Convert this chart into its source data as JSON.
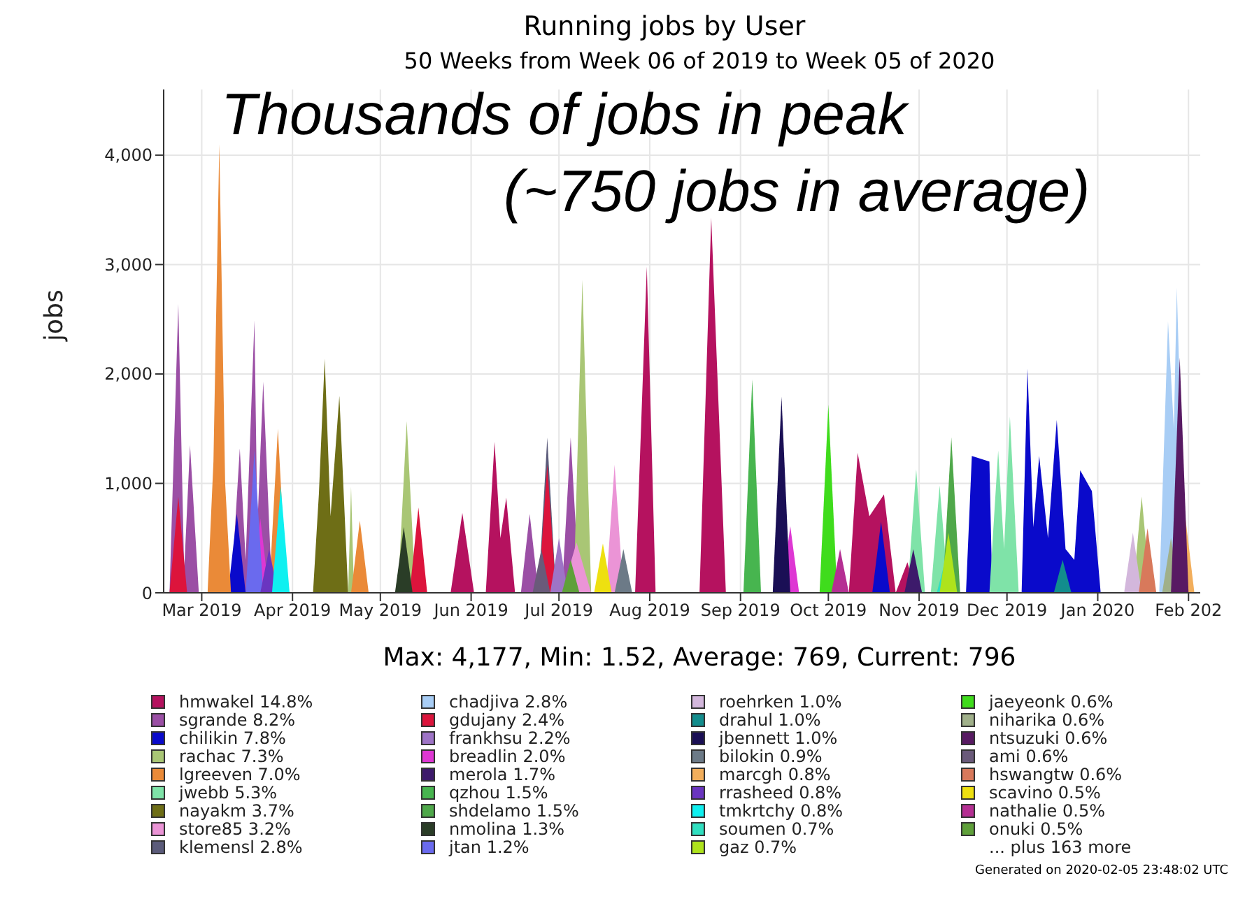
{
  "chart_data": {
    "type": "area",
    "title": "Running jobs by User",
    "subtitle": "50 Weeks from Week 06 of 2019 to Week 05 of 2020",
    "ylabel": "jobs",
    "annotations": [
      "Max: 4,177, Min: 1.52, Average: 769, Current: 796",
      "Thousands of jobs in peak",
      "(~750 jobs in average)",
      "... plus 163 more",
      "Generated on 2020-02-05 23:48:02 UTC"
    ],
    "xlim": [
      "2019-02-16",
      "2020-02-05"
    ],
    "xticks": [
      {
        "value": "2019-03-01",
        "label": "Mar 2019"
      },
      {
        "value": "2019-04-01",
        "label": "Apr 2019"
      },
      {
        "value": "2019-05-01",
        "label": "May 2019"
      },
      {
        "value": "2019-06-01",
        "label": "Jun 2019"
      },
      {
        "value": "2019-07-01",
        "label": "Jul 2019"
      },
      {
        "value": "2019-08-01",
        "label": "Aug 2019"
      },
      {
        "value": "2019-09-01",
        "label": "Sep 2019"
      },
      {
        "value": "2019-10-01",
        "label": "Oct 2019"
      },
      {
        "value": "2019-11-01",
        "label": "Nov 2019"
      },
      {
        "value": "2019-12-01",
        "label": "Dec 2019"
      },
      {
        "value": "2020-01-01",
        "label": "Jan 2020"
      },
      {
        "value": "2020-02-01",
        "label": "Feb 202"
      }
    ],
    "ylim": [
      0,
      4600
    ],
    "yticks": [
      0,
      {
        "value": 1000,
        "label": "1,000"
      },
      {
        "value": 2000,
        "label": "2,000"
      },
      {
        "value": 3000,
        "label": "3,000"
      },
      {
        "value": 4000,
        "label": "4,000"
      }
    ],
    "grid": true,
    "legend": "bottom",
    "series": [
      {
        "name": "hmwakel 14.8%",
        "color": "#b5125f",
        "x": [
          "2019-05-25",
          "2019-05-29",
          "2019-06-02",
          "2019-06-06",
          "2019-06-09",
          "2019-06-11",
          "2019-06-13",
          "2019-06-16",
          "2019-07-27",
          "2019-07-31",
          "2019-08-03",
          "2019-08-18",
          "2019-08-22",
          "2019-08-27",
          "2019-10-08",
          "2019-10-11",
          "2019-10-15",
          "2019-10-20",
          "2019-10-24",
          "2019-10-28",
          "2019-10-31"
        ],
        "values": [
          0,
          730,
          0,
          0,
          1380,
          500,
          870,
          0,
          0,
          2980,
          0,
          0,
          3430,
          0,
          0,
          1280,
          700,
          900,
          0,
          280,
          0
        ]
      },
      {
        "name": "sgrande 8.2%",
        "color": "#9b4fa5",
        "x": [
          "2019-02-18",
          "2019-02-21",
          "2019-02-23",
          "2019-02-25",
          "2019-02-28",
          "2019-03-11",
          "2019-03-14",
          "2019-03-16",
          "2019-03-19",
          "2019-03-20",
          "2019-03-22",
          "2019-03-25",
          "2019-06-18",
          "2019-06-21",
          "2019-06-24",
          "2019-07-02",
          "2019-07-05",
          "2019-07-08"
        ],
        "values": [
          0,
          2640,
          200,
          1350,
          0,
          0,
          1320,
          300,
          2490,
          600,
          1930,
          0,
          0,
          720,
          0,
          0,
          1420,
          0
        ]
      },
      {
        "name": "chilikin 7.8%",
        "color": "#0a0acb",
        "x": [
          "2019-03-10",
          "2019-03-13",
          "2019-03-16",
          "2019-10-16",
          "2019-10-19",
          "2019-10-22",
          "2019-11-17",
          "2019-11-19",
          "2019-11-25",
          "2019-11-26",
          "2019-12-06",
          "2019-12-08",
          "2019-12-10",
          "2019-12-12",
          "2019-12-15",
          "2019-12-18",
          "2019-12-21",
          "2019-12-24",
          "2019-12-26",
          "2019-12-30",
          "2020-01-02"
        ],
        "values": [
          0,
          720,
          0,
          0,
          650,
          0,
          0,
          1250,
          1200,
          0,
          0,
          2050,
          600,
          1250,
          500,
          1580,
          400,
          300,
          1120,
          930,
          0
        ]
      },
      {
        "name": "rachac 7.3%",
        "color": "#a9c675",
        "x": [
          "2019-04-20",
          "2019-04-21",
          "2019-04-22",
          "2019-05-07",
          "2019-05-10",
          "2019-05-13",
          "2019-07-06",
          "2019-07-09",
          "2019-07-12",
          "2020-01-13",
          "2020-01-16",
          "2020-01-19"
        ],
        "values": [
          0,
          970,
          0,
          0,
          1570,
          0,
          0,
          2860,
          0,
          0,
          880,
          0
        ]
      },
      {
        "name": "lgreeven 7.0%",
        "color": "#ea8a38",
        "x": [
          "2019-03-03",
          "2019-03-05",
          "2019-03-07",
          "2019-03-09",
          "2019-03-11",
          "2019-03-24",
          "2019-03-27",
          "2019-03-30",
          "2019-04-21",
          "2019-04-24",
          "2019-04-27"
        ],
        "values": [
          0,
          1200,
          4100,
          1000,
          0,
          0,
          1500,
          0,
          0,
          660,
          0
        ]
      },
      {
        "name": "jwebb 5.3%",
        "color": "#7fe3a8",
        "x": [
          "2019-10-28",
          "2019-10-31",
          "2019-11-03",
          "2019-11-05",
          "2019-11-08",
          "2019-11-11",
          "2019-11-25",
          "2019-11-28",
          "2019-11-30",
          "2019-12-02",
          "2019-12-05"
        ],
        "values": [
          0,
          1130,
          0,
          0,
          980,
          0,
          0,
          1300,
          400,
          1610,
          0
        ]
      },
      {
        "name": "nayakm 3.7%",
        "color": "#6e6e16",
        "x": [
          "2019-04-08",
          "2019-04-10",
          "2019-04-12",
          "2019-04-14",
          "2019-04-17",
          "2019-04-20"
        ],
        "values": [
          0,
          900,
          2140,
          700,
          1800,
          0
        ]
      },
      {
        "name": "store85 3.2%",
        "color": "#eb94d6",
        "x": [
          "2019-07-02",
          "2019-07-07",
          "2019-07-12",
          "2019-07-17",
          "2019-07-20",
          "2019-07-23"
        ],
        "values": [
          0,
          460,
          0,
          0,
          1170,
          0
        ]
      },
      {
        "name": "klemensl 2.8%",
        "color": "#5b5b7a",
        "x": [
          "2019-06-24",
          "2019-06-27",
          "2019-06-30"
        ],
        "values": [
          0,
          1420,
          0
        ]
      },
      {
        "name": "chadjiva 2.8%",
        "color": "#a8cdf5",
        "x": [
          "2020-01-22",
          "2020-01-25",
          "2020-01-27",
          "2020-01-28",
          "2020-01-31"
        ],
        "values": [
          0,
          2480,
          1500,
          2790,
          0
        ]
      },
      {
        "name": "gdujany 2.4%",
        "color": "#dc143c",
        "x": [
          "2019-02-18",
          "2019-02-21",
          "2019-02-24",
          "2019-05-11",
          "2019-05-14",
          "2019-05-17",
          "2019-06-24",
          "2019-06-27",
          "2019-06-30"
        ],
        "values": [
          0,
          880,
          0,
          0,
          780,
          0,
          0,
          1170,
          0
        ]
      },
      {
        "name": "frankhsu 2.2%",
        "color": "#9e74c6",
        "x": [
          "2019-06-28",
          "2019-07-01",
          "2019-07-04"
        ],
        "values": [
          0,
          500,
          0
        ]
      },
      {
        "name": "breadlin 2.0%",
        "color": "#de37d3",
        "x": [
          "2019-03-18",
          "2019-03-21",
          "2019-03-24",
          "2019-09-15",
          "2019-09-18",
          "2019-09-21"
        ],
        "values": [
          0,
          680,
          0,
          0,
          610,
          0
        ]
      },
      {
        "name": "merola 1.7%",
        "color": "#3d1a6b",
        "x": [
          "2019-10-27",
          "2019-10-30",
          "2019-11-02"
        ],
        "values": [
          0,
          400,
          0
        ]
      },
      {
        "name": "qzhou 1.5%",
        "color": "#47b54f",
        "x": [
          "2019-09-02",
          "2019-09-05",
          "2019-09-08"
        ],
        "values": [
          0,
          1950,
          0
        ]
      },
      {
        "name": "shdelamo 1.5%",
        "color": "#4fa84a",
        "x": [
          "2019-11-09",
          "2019-11-12",
          "2019-11-15"
        ],
        "values": [
          0,
          1420,
          0
        ]
      },
      {
        "name": "nmolina 1.3%",
        "color": "#2a3d27",
        "x": [
          "2019-05-06",
          "2019-05-09",
          "2019-05-12"
        ],
        "values": [
          0,
          600,
          0
        ]
      },
      {
        "name": "jtan 1.2%",
        "color": "#6a6aee",
        "x": [
          "2019-03-16",
          "2019-03-19",
          "2019-03-22"
        ],
        "values": [
          0,
          1300,
          0
        ]
      },
      {
        "name": "roehrken 1.0%",
        "color": "#d3b7dc",
        "x": [
          "2020-01-10",
          "2020-01-13",
          "2020-01-16"
        ],
        "values": [
          0,
          550,
          0
        ]
      },
      {
        "name": "drahul 1.0%",
        "color": "#128d8d",
        "x": [
          "2019-12-17",
          "2019-12-20",
          "2019-12-23"
        ],
        "values": [
          0,
          300,
          0
        ]
      },
      {
        "name": "jbennett 1.0%",
        "color": "#1a0f55",
        "x": [
          "2019-09-12",
          "2019-09-15",
          "2019-09-18"
        ],
        "values": [
          0,
          1790,
          0
        ]
      },
      {
        "name": "bilokin 0.9%",
        "color": "#6c7a87",
        "x": [
          "2019-07-20",
          "2019-07-23",
          "2019-07-26"
        ],
        "values": [
          0,
          400,
          0
        ]
      },
      {
        "name": "marcgh 0.8%",
        "color": "#f2ae5c",
        "x": [
          "2020-01-28",
          "2020-01-31",
          "2020-02-03"
        ],
        "values": [
          0,
          670,
          0
        ]
      },
      {
        "name": "rrasheed 0.8%",
        "color": "#6a35c0",
        "x": [
          "2019-03-21",
          "2019-03-24",
          "2019-03-27"
        ],
        "values": [
          0,
          400,
          0
        ]
      },
      {
        "name": "tmkrtchy 0.8%",
        "color": "#0ff0f0",
        "x": [
          "2019-03-25",
          "2019-03-28",
          "2019-03-31"
        ],
        "values": [
          0,
          970,
          0
        ]
      },
      {
        "name": "soumen 0.7%",
        "color": "#30dfc0",
        "x": [
          "2019-11-07",
          "2019-11-10",
          "2019-11-13"
        ],
        "values": [
          0,
          300,
          0
        ]
      },
      {
        "name": "gaz 0.7%",
        "color": "#aee31c",
        "x": [
          "2019-11-08",
          "2019-11-11",
          "2019-11-14"
        ],
        "values": [
          0,
          550,
          0
        ]
      },
      {
        "name": "jaeyeonk 0.6%",
        "color": "#3fdc1c",
        "x": [
          "2019-09-28",
          "2019-10-01",
          "2019-10-04"
        ],
        "values": [
          0,
          1720,
          0
        ]
      },
      {
        "name": "niharika 0.6%",
        "color": "#a0b08a",
        "x": [
          "2020-01-23",
          "2020-01-26",
          "2020-01-29"
        ],
        "values": [
          0,
          500,
          0
        ]
      },
      {
        "name": "ntsuzuki 0.6%",
        "color": "#581a63",
        "x": [
          "2020-01-26",
          "2020-01-29",
          "2020-02-01"
        ],
        "values": [
          0,
          2150,
          0
        ]
      },
      {
        "name": "ami 0.6%",
        "color": "#6a5a7a",
        "x": [
          "2019-06-22",
          "2019-06-25",
          "2019-06-28"
        ],
        "values": [
          0,
          400,
          0
        ]
      },
      {
        "name": "hswangtw 0.6%",
        "color": "#d8795b",
        "x": [
          "2020-01-15",
          "2020-01-18",
          "2020-01-21"
        ],
        "values": [
          0,
          590,
          0
        ]
      },
      {
        "name": "scavino 0.5%",
        "color": "#eee010",
        "x": [
          "2019-07-13",
          "2019-07-16",
          "2019-07-19"
        ],
        "values": [
          0,
          450,
          0
        ]
      },
      {
        "name": "nathalie 0.5%",
        "color": "#b52f93",
        "x": [
          "2019-10-02",
          "2019-10-05",
          "2019-10-08"
        ],
        "values": [
          0,
          400,
          0
        ]
      },
      {
        "name": "onuki 0.5%",
        "color": "#5fa03a",
        "x": [
          "2019-07-02",
          "2019-07-05",
          "2019-07-08"
        ],
        "values": [
          0,
          300,
          0
        ]
      }
    ]
  }
}
